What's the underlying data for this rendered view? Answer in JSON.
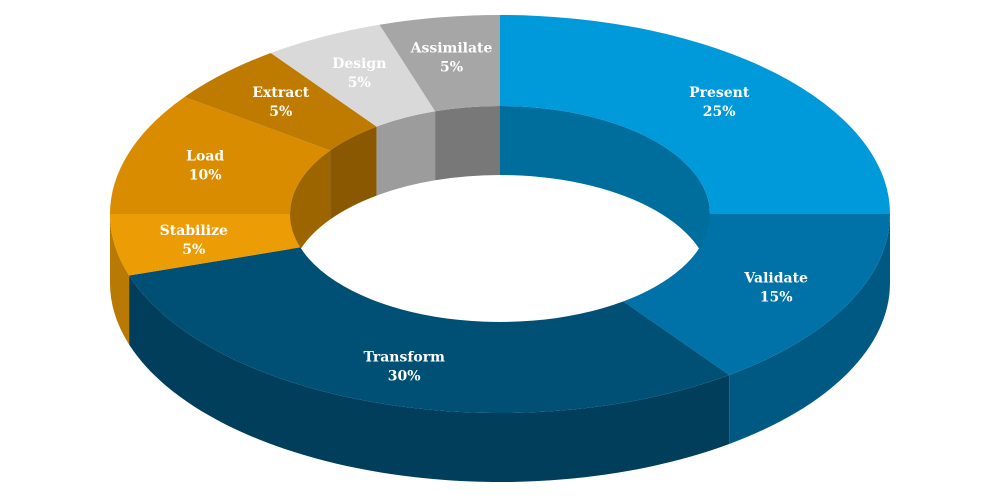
{
  "chart_data": {
    "type": "pie",
    "variant": "3d-donut",
    "title": "",
    "slices": [
      {
        "label": "Present",
        "value": 25,
        "value_label": "25%",
        "color": "#0099DA"
      },
      {
        "label": "Validate",
        "value": 15,
        "value_label": "15%",
        "color": "#0072A8"
      },
      {
        "label": "Transform",
        "value": 30,
        "value_label": "30%",
        "color": "#004F75"
      },
      {
        "label": "Stabilize",
        "value": 5,
        "value_label": "5%",
        "color": "#EC9C05"
      },
      {
        "label": "Load",
        "value": 10,
        "value_label": "10%",
        "color": "#D98C00"
      },
      {
        "label": "Extract",
        "value": 5,
        "value_label": "5%",
        "color": "#BF7A00"
      },
      {
        "label": "Design",
        "value": 5,
        "value_label": "5%",
        "color": "#D9D9D9"
      },
      {
        "label": "Assimilate",
        "value": 5,
        "value_label": "5%",
        "color": "#A6A6A6"
      }
    ]
  }
}
